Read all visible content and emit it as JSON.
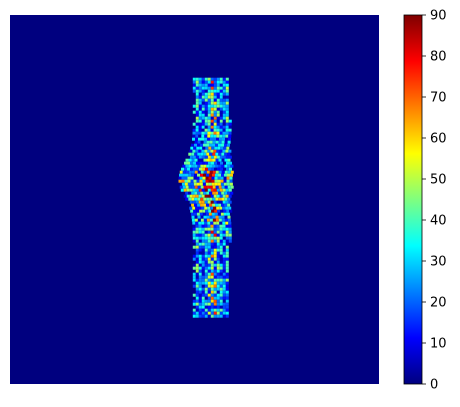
{
  "chart_data": {
    "type": "heatmap",
    "title": "",
    "xlabel": "",
    "ylabel": "",
    "axes_visible": false,
    "background_value": 0,
    "colormap": "jet",
    "colormap_stops": [
      "#00007f",
      "#0000ff",
      "#007fff",
      "#00ffff",
      "#7fff7f",
      "#ffff00",
      "#ff7f00",
      "#ff0000",
      "#7f0000"
    ],
    "colorbar": {
      "position": "right",
      "vmin": 0,
      "vmax": 90,
      "ticks": [
        0,
        10,
        20,
        30,
        40,
        50,
        60,
        70,
        80,
        90
      ],
      "tick_labels": [
        "0",
        "10",
        "20",
        "30",
        "40",
        "50",
        "60",
        "70",
        "80",
        "90"
      ]
    },
    "feature": {
      "description_value_range": [
        0,
        90
      ],
      "shape": "vertical elongated speckled band near image center",
      "center_fraction": [
        0.57,
        0.53
      ],
      "extent_fraction_x": [
        0.49,
        0.62
      ],
      "extent_fraction_y": [
        0.17,
        0.82
      ],
      "hotspot_value": 90,
      "hotspot_region_fraction_y": [
        0.4,
        0.65
      ]
    }
  }
}
